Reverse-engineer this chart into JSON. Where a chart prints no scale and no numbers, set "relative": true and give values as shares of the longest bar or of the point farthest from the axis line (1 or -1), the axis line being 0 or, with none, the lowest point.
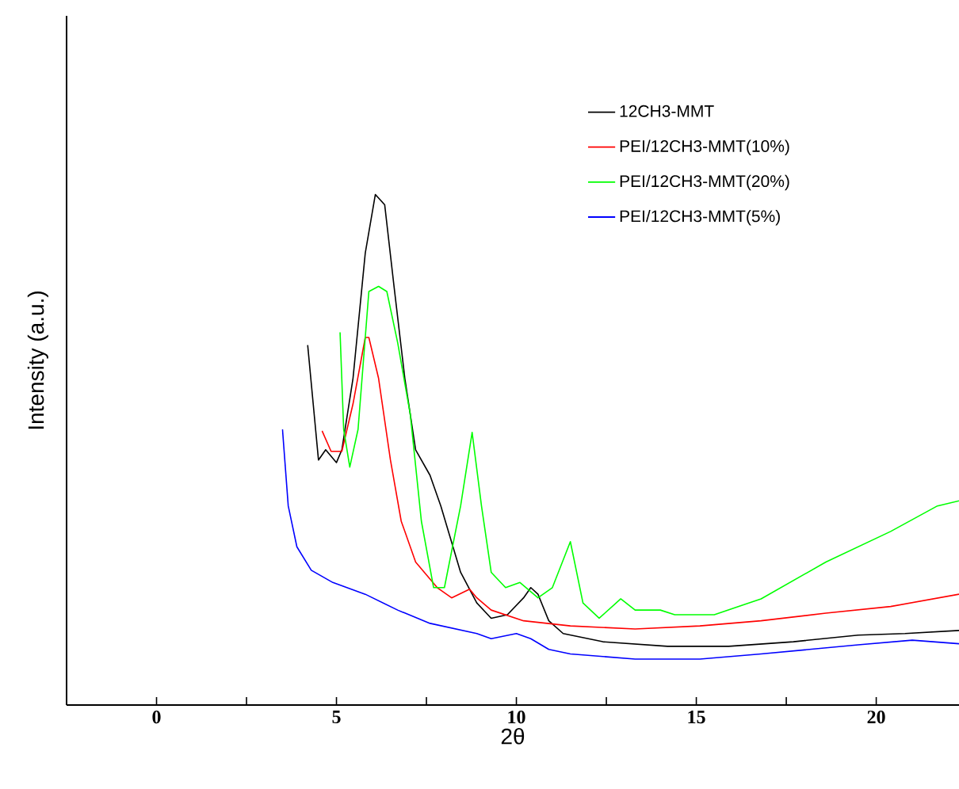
{
  "chart_data": {
    "type": "line",
    "relative": true,
    "xlabel": "2θ",
    "ylabel": "Intensity (a.u.)",
    "xlim": [
      -2.5,
      22.3
    ],
    "xticks": [
      0,
      {
        "value": 2.5,
        "label": null
      },
      5,
      {
        "value": 7.5,
        "label": null
      },
      10,
      {
        "value": 12.5,
        "label": null
      },
      15,
      {
        "value": 17.5,
        "label": null
      },
      20
    ],
    "legend": "top right",
    "grid": false,
    "marker": "none",
    "line_style": "solid",
    "series": [
      {
        "name": "12CH3-MMT",
        "color": "#000000",
        "x": [
          4.2,
          4.5,
          4.7,
          5.0,
          5.15,
          5.46,
          5.8,
          6.08,
          6.34,
          6.6,
          6.9,
          7.2,
          7.6,
          7.9,
          8.45,
          8.9,
          9.3,
          9.75,
          10.2,
          10.4,
          10.6,
          10.9,
          11.3,
          12.4,
          14.2,
          15.9,
          17.7,
          19.5,
          20.8,
          22.3
        ],
        "values": [
          0.705,
          0.48,
          0.5,
          0.475,
          0.5,
          0.64,
          0.885,
          1.0,
          0.98,
          0.82,
          0.64,
          0.5,
          0.45,
          0.39,
          0.26,
          0.2,
          0.17,
          0.177,
          0.21,
          0.23,
          0.217,
          0.165,
          0.14,
          0.124,
          0.115,
          0.115,
          0.124,
          0.137,
          0.14,
          0.146
        ]
      },
      {
        "name": "PEI/12CH3-MMT(10%)",
        "color": "#ff0000",
        "x": [
          4.6,
          4.85,
          5.15,
          5.46,
          5.8,
          5.9,
          6.17,
          6.5,
          6.8,
          7.2,
          7.8,
          8.2,
          8.7,
          8.9,
          9.3,
          10.2,
          11.5,
          13.3,
          15.1,
          16.8,
          18.6,
          20.4,
          22.3
        ],
        "values": [
          0.537,
          0.497,
          0.497,
          0.59,
          0.72,
          0.72,
          0.64,
          0.48,
          0.36,
          0.28,
          0.23,
          0.21,
          0.227,
          0.21,
          0.186,
          0.165,
          0.155,
          0.149,
          0.155,
          0.165,
          0.18,
          0.193,
          0.217
        ]
      },
      {
        "name": "PEI/12CH3-MMT(20%)",
        "color": "#00ff00",
        "x": [
          5.1,
          5.2,
          5.37,
          5.6,
          5.9,
          6.17,
          6.4,
          6.7,
          7.05,
          7.36,
          7.7,
          8.0,
          8.45,
          8.77,
          9.03,
          9.3,
          9.7,
          10.1,
          10.6,
          11.0,
          11.5,
          11.85,
          12.3,
          12.9,
          13.3,
          14.0,
          14.4,
          15.5,
          16.8,
          18.6,
          20.4,
          21.7,
          22.3
        ],
        "values": [
          0.73,
          0.54,
          0.466,
          0.54,
          0.81,
          0.82,
          0.81,
          0.71,
          0.57,
          0.36,
          0.23,
          0.23,
          0.39,
          0.534,
          0.39,
          0.26,
          0.23,
          0.24,
          0.21,
          0.23,
          0.32,
          0.2,
          0.17,
          0.208,
          0.186,
          0.186,
          0.177,
          0.177,
          0.208,
          0.28,
          0.34,
          0.39,
          0.4
        ]
      },
      {
        "name": "PEI/12CH3-MMT(5%)",
        "color": "#0000ff",
        "x": [
          3.5,
          3.66,
          3.9,
          4.3,
          4.9,
          5.8,
          6.7,
          7.6,
          8.9,
          9.3,
          10.0,
          10.4,
          10.9,
          11.5,
          13.3,
          15.1,
          16.8,
          19.5,
          21.0,
          22.3
        ],
        "values": [
          0.54,
          0.39,
          0.31,
          0.264,
          0.24,
          0.217,
          0.186,
          0.16,
          0.14,
          0.13,
          0.14,
          0.13,
          0.109,
          0.1,
          0.09,
          0.09,
          0.1,
          0.118,
          0.127,
          0.12
        ]
      }
    ]
  }
}
